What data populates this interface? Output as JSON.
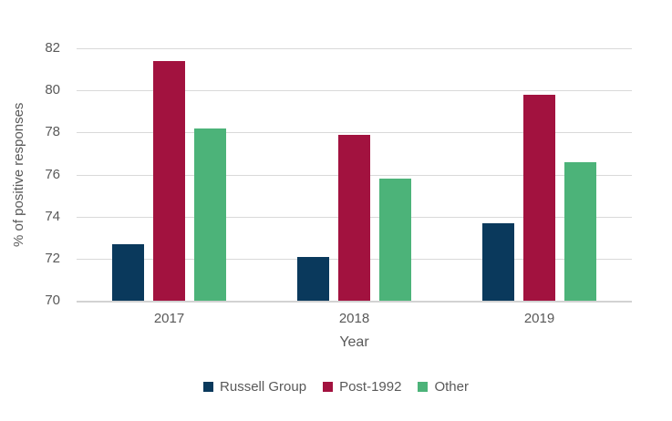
{
  "chart_data": {
    "type": "bar",
    "title": "",
    "xlabel": "Year",
    "ylabel": "% of positive responses",
    "categories": [
      "2017",
      "2018",
      "2019"
    ],
    "series": [
      {
        "name": "Russell Group",
        "color": "#0a395c",
        "values": [
          72.7,
          72.1,
          73.7
        ]
      },
      {
        "name": "Post-1992",
        "color": "#a2123f",
        "values": [
          81.4,
          77.9,
          79.8
        ]
      },
      {
        "name": "Other",
        "color": "#4cb379",
        "values": [
          78.2,
          75.8,
          76.6
        ]
      }
    ],
    "ylim": [
      70,
      82
    ],
    "ytick_step": 2,
    "yticks": [
      "70",
      "72",
      "74",
      "76",
      "78",
      "80",
      "82"
    ],
    "grid": true,
    "legend_position": "bottom",
    "colors": {
      "gridline": "#d9d9d9",
      "axis_line": "#d2d2d2",
      "text": "#595959",
      "background": "#ffffff"
    }
  }
}
